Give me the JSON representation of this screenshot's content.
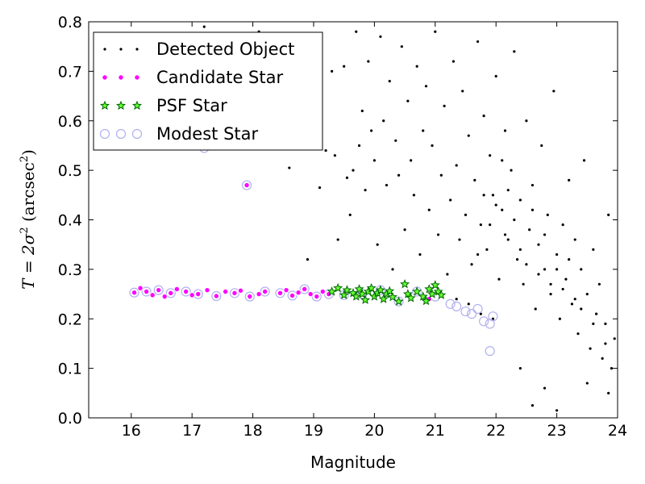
{
  "chart_data": {
    "type": "scatter",
    "title": "",
    "xlabel": "Magnitude",
    "ylabel": "T = 2σ² (arcsec²)",
    "ylabel_parts": {
      "main": "T = 2σ",
      "exp": "2",
      "rest": " (arcsec",
      "unit_exp": "2",
      "close": ")"
    },
    "xlim": [
      15.3,
      24.0
    ],
    "ylim": [
      0.0,
      0.8
    ],
    "x_ticks": [
      "16",
      "17",
      "18",
      "19",
      "20",
      "21",
      "22",
      "23",
      "24"
    ],
    "y_ticks": [
      "0.0",
      "0.1",
      "0.2",
      "0.3",
      "0.4",
      "0.5",
      "0.6",
      "0.7",
      "0.8"
    ],
    "grid": false,
    "legend_position": "top-left",
    "colors": {
      "detected": "#000000",
      "candidate_fill": "#ff00ff",
      "candidate_edge": "#ffffff",
      "psf_fill": "#66ff33",
      "psf_edge": "#006600",
      "modest_edge": "#b0b0f0"
    },
    "series": [
      {
        "name": "Detected Object",
        "marker": "dot",
        "points": [
          [
            17.2,
            0.79
          ],
          [
            18.1,
            0.78
          ],
          [
            18.6,
            0.505
          ],
          [
            18.9,
            0.32
          ],
          [
            19.1,
            0.465
          ],
          [
            19.2,
            0.54
          ],
          [
            19.3,
            0.7
          ],
          [
            19.35,
            0.53
          ],
          [
            19.4,
            0.36
          ],
          [
            19.5,
            0.71
          ],
          [
            19.55,
            0.485
          ],
          [
            19.6,
            0.41
          ],
          [
            19.65,
            0.5
          ],
          [
            19.7,
            0.78
          ],
          [
            19.75,
            0.55
          ],
          [
            19.8,
            0.62
          ],
          [
            19.85,
            0.46
          ],
          [
            19.9,
            0.72
          ],
          [
            19.95,
            0.58
          ],
          [
            20.0,
            0.52
          ],
          [
            20.05,
            0.35
          ],
          [
            20.1,
            0.77
          ],
          [
            20.15,
            0.6
          ],
          [
            20.2,
            0.47
          ],
          [
            20.25,
            0.68
          ],
          [
            20.3,
            0.3
          ],
          [
            20.35,
            0.56
          ],
          [
            20.4,
            0.49
          ],
          [
            20.45,
            0.75
          ],
          [
            20.5,
            0.38
          ],
          [
            20.55,
            0.64
          ],
          [
            20.6,
            0.52
          ],
          [
            20.65,
            0.45
          ],
          [
            20.7,
            0.71
          ],
          [
            20.75,
            0.33
          ],
          [
            20.8,
            0.58
          ],
          [
            20.85,
            0.67
          ],
          [
            20.9,
            0.42
          ],
          [
            20.95,
            0.55
          ],
          [
            21.0,
            0.78
          ],
          [
            21.05,
            0.37
          ],
          [
            21.1,
            0.49
          ],
          [
            21.15,
            0.63
          ],
          [
            21.2,
            0.29
          ],
          [
            21.25,
            0.44
          ],
          [
            21.3,
            0.72
          ],
          [
            21.35,
            0.51
          ],
          [
            21.4,
            0.36
          ],
          [
            21.45,
            0.66
          ],
          [
            21.5,
            0.41
          ],
          [
            21.55,
            0.57
          ],
          [
            21.6,
            0.31
          ],
          [
            21.65,
            0.48
          ],
          [
            21.7,
            0.76
          ],
          [
            21.75,
            0.39
          ],
          [
            21.8,
            0.61
          ],
          [
            21.85,
            0.34
          ],
          [
            21.9,
            0.53
          ],
          [
            21.95,
            0.45
          ],
          [
            22.0,
            0.69
          ],
          [
            22.05,
            0.28
          ],
          [
            22.1,
            0.42
          ],
          [
            22.15,
            0.58
          ],
          [
            22.2,
            0.36
          ],
          [
            22.25,
            0.5
          ],
          [
            22.3,
            0.74
          ],
          [
            22.35,
            0.32
          ],
          [
            22.4,
            0.44
          ],
          [
            22.45,
            0.27
          ],
          [
            22.5,
            0.6
          ],
          [
            22.55,
            0.38
          ],
          [
            22.6,
            0.47
          ],
          [
            22.65,
            0.22
          ],
          [
            22.7,
            0.35
          ],
          [
            22.75,
            0.55
          ],
          [
            22.8,
            0.3
          ],
          [
            22.85,
            0.41
          ],
          [
            22.9,
            0.25
          ],
          [
            22.95,
            0.66
          ],
          [
            23.0,
            0.33
          ],
          [
            23.05,
            0.2
          ],
          [
            23.1,
            0.39
          ],
          [
            23.15,
            0.28
          ],
          [
            23.2,
            0.48
          ],
          [
            23.25,
            0.23
          ],
          [
            23.3,
            0.36
          ],
          [
            23.35,
            0.17
          ],
          [
            23.4,
            0.3
          ],
          [
            23.45,
            0.52
          ],
          [
            23.5,
            0.25
          ],
          [
            23.55,
            0.14
          ],
          [
            23.6,
            0.34
          ],
          [
            23.65,
            0.21
          ],
          [
            23.7,
            0.27
          ],
          [
            23.75,
            0.12
          ],
          [
            23.8,
            0.19
          ],
          [
            23.85,
            0.41
          ],
          [
            23.9,
            0.1
          ],
          [
            23.95,
            0.16
          ],
          [
            23.85,
            0.05
          ],
          [
            23.5,
            0.07
          ],
          [
            23.0,
            0.015
          ],
          [
            22.6,
            0.025
          ],
          [
            22.8,
            0.06
          ],
          [
            22.4,
            0.1
          ],
          [
            21.95,
            0.2
          ],
          [
            21.75,
            0.21
          ],
          [
            21.55,
            0.23
          ],
          [
            21.35,
            0.24
          ],
          [
            22.1,
            0.52
          ],
          [
            22.2,
            0.46
          ],
          [
            22.3,
            0.4
          ],
          [
            22.4,
            0.34
          ],
          [
            22.0,
            0.43
          ],
          [
            22.15,
            0.37
          ],
          [
            22.5,
            0.31
          ],
          [
            22.7,
            0.29
          ],
          [
            22.9,
            0.27
          ],
          [
            23.1,
            0.26
          ],
          [
            23.3,
            0.24
          ],
          [
            21.8,
            0.45
          ],
          [
            21.7,
            0.33
          ],
          [
            21.9,
            0.39
          ],
          [
            22.6,
            0.42
          ],
          [
            22.8,
            0.37
          ],
          [
            23.0,
            0.3
          ],
          [
            23.2,
            0.32
          ],
          [
            23.4,
            0.22
          ],
          [
            23.6,
            0.19
          ],
          [
            23.8,
            0.15
          ]
        ]
      },
      {
        "name": "Candidate Star",
        "marker": "circle",
        "points": [
          [
            16.05,
            0.253
          ],
          [
            16.15,
            0.262
          ],
          [
            16.25,
            0.255
          ],
          [
            16.35,
            0.248
          ],
          [
            16.45,
            0.258
          ],
          [
            16.55,
            0.245
          ],
          [
            16.65,
            0.252
          ],
          [
            16.75,
            0.26
          ],
          [
            16.9,
            0.255
          ],
          [
            17.0,
            0.248
          ],
          [
            17.1,
            0.25
          ],
          [
            17.25,
            0.258
          ],
          [
            17.4,
            0.246
          ],
          [
            17.55,
            0.255
          ],
          [
            17.7,
            0.252
          ],
          [
            17.8,
            0.257
          ],
          [
            17.95,
            0.245
          ],
          [
            18.1,
            0.25
          ],
          [
            18.2,
            0.255
          ],
          [
            18.45,
            0.252
          ],
          [
            18.55,
            0.258
          ],
          [
            18.65,
            0.247
          ],
          [
            18.75,
            0.253
          ],
          [
            18.85,
            0.26
          ],
          [
            18.95,
            0.25
          ],
          [
            19.05,
            0.245
          ],
          [
            19.15,
            0.255
          ],
          [
            19.25,
            0.25
          ],
          [
            17.9,
            0.47
          ],
          [
            20.9,
            0.24
          ]
        ]
      },
      {
        "name": "PSF Star",
        "marker": "star",
        "points": [
          [
            19.3,
            0.255
          ],
          [
            19.4,
            0.262
          ],
          [
            19.5,
            0.248
          ],
          [
            19.55,
            0.258
          ],
          [
            19.65,
            0.252
          ],
          [
            19.7,
            0.245
          ],
          [
            19.75,
            0.26
          ],
          [
            19.8,
            0.25
          ],
          [
            19.85,
            0.238
          ],
          [
            19.9,
            0.255
          ],
          [
            19.95,
            0.262
          ],
          [
            20.0,
            0.245
          ],
          [
            20.05,
            0.252
          ],
          [
            20.1,
            0.258
          ],
          [
            20.15,
            0.24
          ],
          [
            20.2,
            0.25
          ],
          [
            20.25,
            0.256
          ],
          [
            20.3,
            0.244
          ],
          [
            20.4,
            0.235
          ],
          [
            20.5,
            0.27
          ],
          [
            20.55,
            0.25
          ],
          [
            20.6,
            0.242
          ],
          [
            20.7,
            0.255
          ],
          [
            20.8,
            0.245
          ],
          [
            20.85,
            0.236
          ],
          [
            20.9,
            0.26
          ],
          [
            20.95,
            0.25
          ],
          [
            21.0,
            0.268
          ],
          [
            21.05,
            0.255
          ],
          [
            21.1,
            0.248
          ]
        ]
      },
      {
        "name": "Modest Star",
        "marker": "ring",
        "points": [
          [
            16.05,
            0.253
          ],
          [
            16.25,
            0.255
          ],
          [
            16.45,
            0.258
          ],
          [
            16.65,
            0.252
          ],
          [
            16.9,
            0.255
          ],
          [
            17.1,
            0.25
          ],
          [
            17.4,
            0.246
          ],
          [
            17.7,
            0.252
          ],
          [
            17.95,
            0.245
          ],
          [
            18.2,
            0.255
          ],
          [
            18.45,
            0.252
          ],
          [
            18.65,
            0.247
          ],
          [
            18.85,
            0.26
          ],
          [
            19.05,
            0.245
          ],
          [
            19.25,
            0.25
          ],
          [
            19.5,
            0.248
          ],
          [
            19.8,
            0.25
          ],
          [
            20.1,
            0.258
          ],
          [
            20.4,
            0.235
          ],
          [
            20.7,
            0.255
          ],
          [
            21.0,
            0.245
          ],
          [
            21.25,
            0.23
          ],
          [
            21.35,
            0.225
          ],
          [
            21.5,
            0.215
          ],
          [
            21.6,
            0.21
          ],
          [
            21.7,
            0.22
          ],
          [
            21.8,
            0.195
          ],
          [
            21.9,
            0.19
          ],
          [
            21.95,
            0.205
          ],
          [
            21.9,
            0.135
          ],
          [
            17.9,
            0.47
          ],
          [
            17.2,
            0.545
          ]
        ]
      }
    ]
  }
}
